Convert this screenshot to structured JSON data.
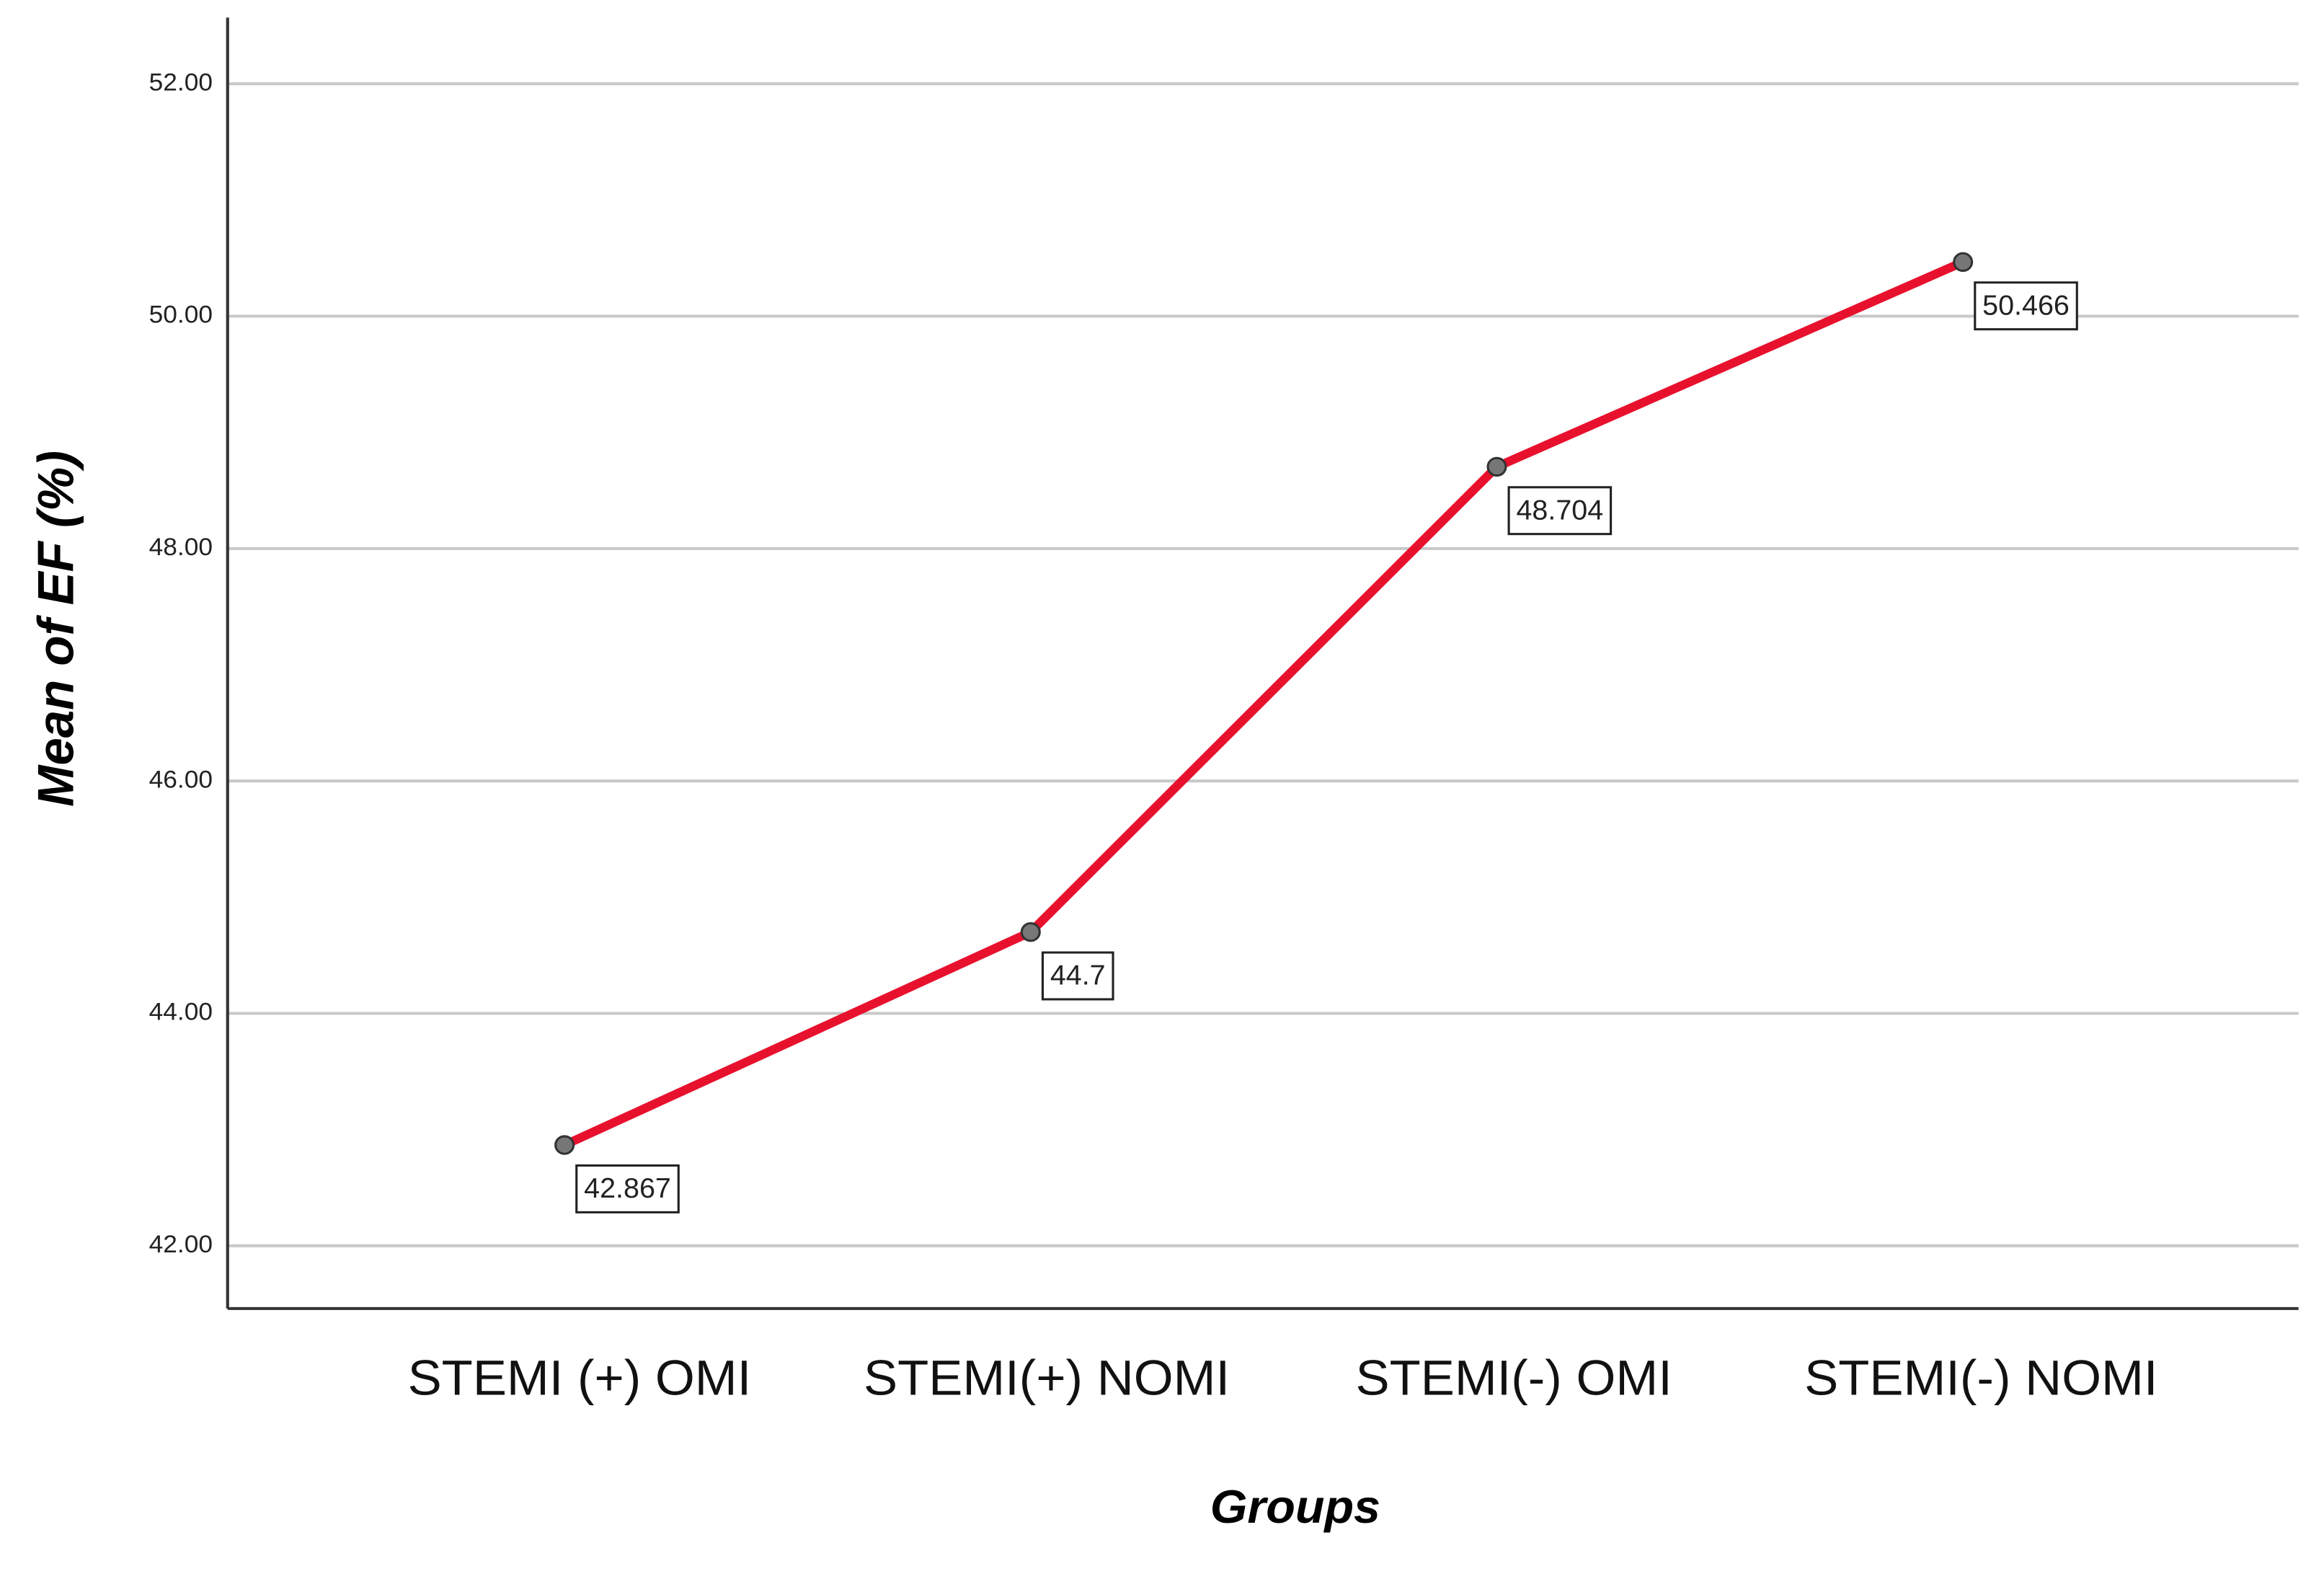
{
  "chart_data": {
    "type": "line",
    "x_label": "Groups",
    "y_label": "Mean of EF (%)",
    "categories": [
      "STEMI (+) OMI",
      "STEMI(+) NOMI",
      "STEMI(-) OMI",
      "STEMI(-) NOMI"
    ],
    "series": [
      {
        "name": "Mean of EF",
        "color": "#e8112d",
        "values": [
          42.867,
          44.7,
          48.704,
          50.466
        ]
      }
    ],
    "ylim": [
      41.46,
      52.57
    ],
    "yticks": [
      {
        "value": 42,
        "label": "42.00"
      },
      {
        "value": 44,
        "label": "44.00"
      },
      {
        "value": 46,
        "label": "46.00"
      },
      {
        "value": 48,
        "label": "48.00"
      },
      {
        "value": 50,
        "label": "50.00"
      },
      {
        "value": 52,
        "label": "52.00"
      }
    ],
    "grid": true
  }
}
